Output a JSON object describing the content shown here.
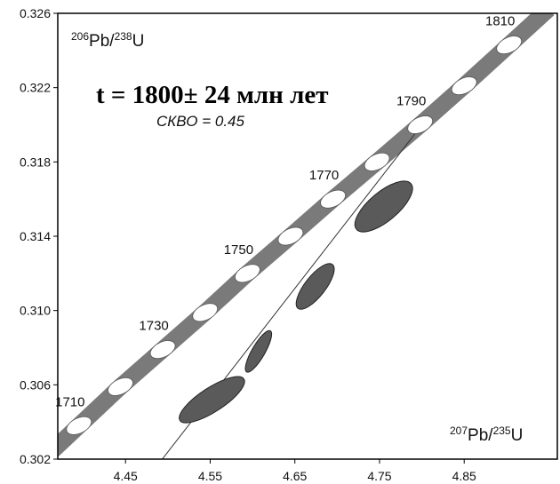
{
  "chart_data": {
    "type": "scatter",
    "xlabel_parts": {
      "sup1": "207",
      "base1": "Pb/",
      "sup2": "235",
      "base2": "U"
    },
    "ylabel_parts": {
      "sup1": "206",
      "base1": "Pb/",
      "sup2": "238",
      "base2": "U"
    },
    "xlim": [
      4.37,
      4.96
    ],
    "ylim": [
      0.302,
      0.326
    ],
    "x_ticks": [
      {
        "value": 4.45,
        "label": "4.45"
      },
      {
        "value": 4.55,
        "label": "4.55"
      },
      {
        "value": 4.65,
        "label": "4.65"
      },
      {
        "value": 4.75,
        "label": "4.75"
      },
      {
        "value": 4.85,
        "label": "4.85"
      }
    ],
    "y_ticks": [
      {
        "value": 0.302,
        "label": "0.302"
      },
      {
        "value": 0.306,
        "label": "0.306"
      },
      {
        "value": 0.31,
        "label": "0.310"
      },
      {
        "value": 0.314,
        "label": "0.314"
      },
      {
        "value": 0.318,
        "label": "0.318"
      },
      {
        "value": 0.322,
        "label": "0.322"
      },
      {
        "value": 0.326,
        "label": "0.326"
      }
    ],
    "grid": false,
    "concordia_marks": [
      {
        "age": 1710,
        "x": 4.395,
        "y": 0.3038,
        "label": "1710"
      },
      {
        "age": 1720,
        "x": 4.444,
        "y": 0.3059,
        "label": ""
      },
      {
        "age": 1730,
        "x": 4.494,
        "y": 0.3079,
        "label": "1730"
      },
      {
        "age": 1740,
        "x": 4.544,
        "y": 0.3099,
        "label": ""
      },
      {
        "age": 1750,
        "x": 4.594,
        "y": 0.312,
        "label": "1750"
      },
      {
        "age": 1760,
        "x": 4.645,
        "y": 0.314,
        "label": ""
      },
      {
        "age": 1770,
        "x": 4.695,
        "y": 0.316,
        "label": "1770"
      },
      {
        "age": 1780,
        "x": 4.747,
        "y": 0.318,
        "label": ""
      },
      {
        "age": 1790,
        "x": 4.798,
        "y": 0.32,
        "label": "1790"
      },
      {
        "age": 1800,
        "x": 4.85,
        "y": 0.3221,
        "label": ""
      },
      {
        "age": 1810,
        "x": 4.903,
        "y": 0.3243,
        "label": "1810"
      }
    ],
    "discordia_line": {
      "x": [
        4.49,
        4.795
      ],
      "y": [
        0.3018,
        0.3197
      ]
    },
    "error_ellipses": [
      {
        "x": 4.552,
        "y": 0.3052,
        "rx": 0.045,
        "ry": 0.00065,
        "angle_deg": -33
      },
      {
        "x": 4.607,
        "y": 0.3078,
        "rx": 0.028,
        "ry": 0.00035,
        "angle_deg": -60
      },
      {
        "x": 4.674,
        "y": 0.3113,
        "rx": 0.033,
        "ry": 0.00055,
        "angle_deg": -52
      },
      {
        "x": 4.755,
        "y": 0.3156,
        "rx": 0.042,
        "ry": 0.00078,
        "angle_deg": -40
      }
    ],
    "annotation_result": "t = 1800± 24 млн лет",
    "annotation_mswd": "СКВО  = 0.45",
    "colors": {
      "concordia_band": "#7a7a7a",
      "age_marker": "#ffffff",
      "ellipse_fill": "#5a5a5a",
      "discordia": "#333333",
      "frame": "#000000"
    }
  }
}
